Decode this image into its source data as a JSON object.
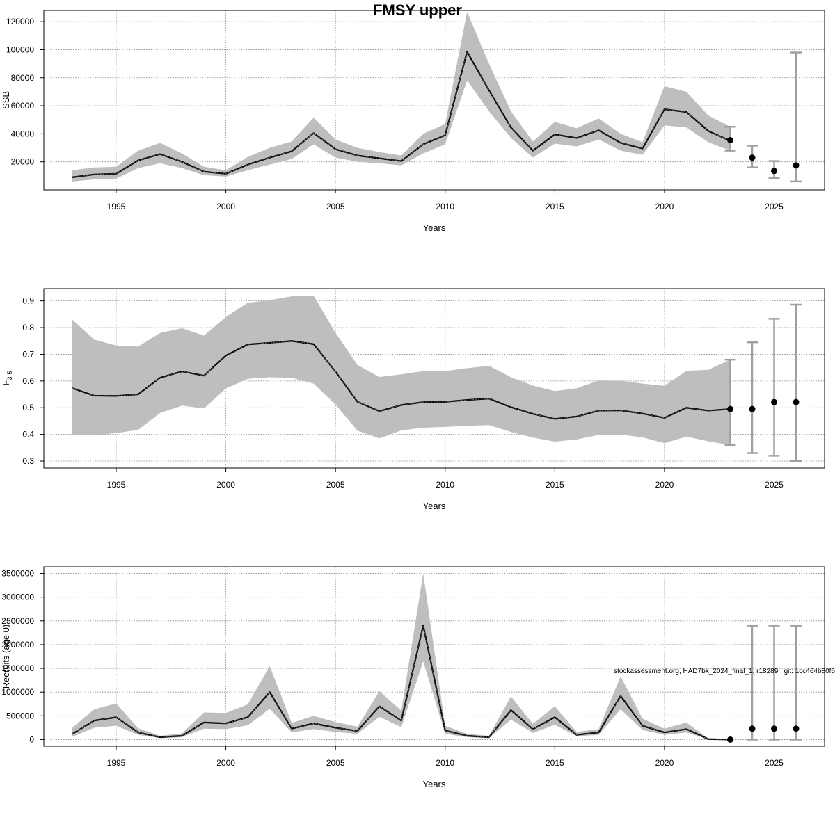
{
  "title": "FMSY upper",
  "footnote": "stockassessment.org, HAD7bk_2024_final_1, r18289 , git: 1cc464b80f6",
  "chart_data": [
    {
      "type": "line",
      "name": "ssb",
      "xlabel": "Years",
      "ylabel": "SSB",
      "ylabel_sub": "",
      "xlim": [
        1991.7,
        2027.3
      ],
      "ylim": [
        0,
        128000
      ],
      "yticks": [
        20000,
        40000,
        60000,
        80000,
        100000,
        120000
      ],
      "ytick_labels": [
        "20000",
        "40000",
        "60000",
        "80000",
        "100000",
        "120000"
      ],
      "xticks": [
        1995,
        2000,
        2005,
        2010,
        2015,
        2020,
        2025
      ],
      "grid": true,
      "series": [
        {
          "name": "estimate",
          "x": [
            1993,
            1994,
            1995,
            1996,
            1997,
            1998,
            1999,
            2000,
            2001,
            2002,
            2003,
            2004,
            2005,
            2006,
            2007,
            2008,
            2009,
            2010,
            2011,
            2012,
            2013,
            2014,
            2015,
            2016,
            2017,
            2018,
            2019,
            2020,
            2021,
            2022,
            2023
          ],
          "values": [
            9000,
            11000,
            11500,
            21000,
            25500,
            20000,
            13000,
            11500,
            18000,
            23000,
            27500,
            40500,
            29000,
            24500,
            22500,
            20500,
            32500,
            39000,
            98500,
            71000,
            44500,
            28000,
            39500,
            37000,
            42500,
            33500,
            29500,
            57500,
            55500,
            42000,
            35000
          ],
          "lower": [
            6000,
            7500,
            8000,
            15500,
            19000,
            15500,
            10500,
            9500,
            14000,
            18000,
            22000,
            32500,
            23000,
            20000,
            19000,
            17500,
            26000,
            32500,
            78000,
            56000,
            37000,
            23000,
            33000,
            31000,
            36000,
            28000,
            25000,
            46000,
            44500,
            34000,
            28000
          ],
          "upper": [
            14000,
            16000,
            16500,
            28000,
            33500,
            26000,
            16500,
            14000,
            23500,
            30000,
            34500,
            51500,
            36000,
            30000,
            27000,
            24500,
            40000,
            47000,
            127000,
            90000,
            56000,
            34500,
            48500,
            44000,
            51000,
            40000,
            34000,
            74000,
            70000,
            53000,
            45000
          ]
        }
      ],
      "forecast": {
        "x": [
          2023,
          2024,
          2025,
          2026
        ],
        "values": [
          35500,
          23000,
          13500,
          17500
        ],
        "lower": [
          28000,
          16000,
          8500,
          6000
        ],
        "upper": [
          45000,
          31500,
          20500,
          98000
        ]
      }
    },
    {
      "type": "line",
      "name": "fbar",
      "xlabel": "Years",
      "ylabel": "F",
      "ylabel_sub": "3-5",
      "xlim": [
        1991.7,
        2027.3
      ],
      "ylim": [
        0.274,
        0.946
      ],
      "yticks": [
        0.3,
        0.4,
        0.5,
        0.6,
        0.7,
        0.8,
        0.9
      ],
      "ytick_labels": [
        "0.3",
        "0.4",
        "0.5",
        "0.6",
        "0.7",
        "0.8",
        "0.9"
      ],
      "xticks": [
        1995,
        2000,
        2005,
        2010,
        2015,
        2020,
        2025
      ],
      "grid": true,
      "series": [
        {
          "name": "estimate",
          "x": [
            1993,
            1994,
            1995,
            1996,
            1997,
            1998,
            1999,
            2000,
            2001,
            2002,
            2003,
            2004,
            2005,
            2006,
            2007,
            2008,
            2009,
            2010,
            2011,
            2012,
            2013,
            2014,
            2015,
            2016,
            2017,
            2018,
            2019,
            2020,
            2021,
            2022,
            2023
          ],
          "values": [
            0.573,
            0.545,
            0.544,
            0.55,
            0.612,
            0.636,
            0.62,
            0.695,
            0.737,
            0.743,
            0.75,
            0.738,
            0.635,
            0.522,
            0.487,
            0.51,
            0.521,
            0.522,
            0.529,
            0.534,
            0.502,
            0.477,
            0.458,
            0.467,
            0.489,
            0.49,
            0.478,
            0.462,
            0.5,
            0.489,
            0.495
          ],
          "lower": [
            0.398,
            0.397,
            0.405,
            0.417,
            0.48,
            0.508,
            0.497,
            0.572,
            0.608,
            0.614,
            0.612,
            0.59,
            0.512,
            0.414,
            0.385,
            0.415,
            0.425,
            0.428,
            0.432,
            0.435,
            0.409,
            0.388,
            0.373,
            0.381,
            0.398,
            0.399,
            0.389,
            0.367,
            0.392,
            0.374,
            0.36
          ],
          "upper": [
            0.83,
            0.755,
            0.733,
            0.729,
            0.78,
            0.798,
            0.77,
            0.84,
            0.893,
            0.903,
            0.917,
            0.92,
            0.78,
            0.66,
            0.615,
            0.625,
            0.637,
            0.637,
            0.648,
            0.657,
            0.614,
            0.583,
            0.562,
            0.573,
            0.602,
            0.601,
            0.59,
            0.582,
            0.638,
            0.642,
            0.68
          ]
        }
      ],
      "forecast": {
        "x": [
          2023,
          2024,
          2025,
          2026
        ],
        "values": [
          0.495,
          0.495,
          0.521,
          0.521
        ],
        "lower": [
          0.36,
          0.33,
          0.32,
          0.3
        ],
        "upper": [
          0.68,
          0.745,
          0.833,
          0.886
        ]
      }
    },
    {
      "type": "line",
      "name": "recruits",
      "xlabel": "Years",
      "ylabel": "Recruits (age 0)",
      "ylabel_sub": "",
      "xlim": [
        1991.7,
        2027.3
      ],
      "ylim": [
        -140000,
        3640000
      ],
      "yticks": [
        0,
        500000,
        1000000,
        1500000,
        2000000,
        2500000,
        3000000,
        3500000
      ],
      "ytick_labels": [
        "0",
        "500000",
        "1000000",
        "1500000",
        "2000000",
        "2500000",
        "3000000",
        "3500000"
      ],
      "xticks": [
        1995,
        2000,
        2005,
        2010,
        2015,
        2020,
        2025
      ],
      "grid": true,
      "series": [
        {
          "name": "estimate",
          "x": [
            1993,
            1994,
            1995,
            1996,
            1997,
            1998,
            1999,
            2000,
            2001,
            2002,
            2003,
            2004,
            2005,
            2006,
            2007,
            2008,
            2009,
            2010,
            2011,
            2012,
            2013,
            2014,
            2015,
            2016,
            2017,
            2018,
            2019,
            2020,
            2021,
            2022,
            2023
          ],
          "values": [
            120000,
            400000,
            470000,
            150000,
            50000,
            80000,
            360000,
            340000,
            470000,
            1000000,
            230000,
            340000,
            250000,
            180000,
            700000,
            400000,
            2400000,
            190000,
            80000,
            50000,
            620000,
            220000,
            470000,
            100000,
            150000,
            920000,
            290000,
            150000,
            220000,
            10000,
            0
          ],
          "lower": [
            60000,
            250000,
            290000,
            100000,
            30000,
            50000,
            230000,
            220000,
            300000,
            650000,
            150000,
            220000,
            160000,
            120000,
            480000,
            260000,
            1650000,
            120000,
            50000,
            30000,
            420000,
            140000,
            310000,
            70000,
            100000,
            640000,
            200000,
            100000,
            150000,
            5000,
            0
          ],
          "upper": [
            250000,
            640000,
            760000,
            240000,
            80000,
            130000,
            570000,
            560000,
            740000,
            1550000,
            350000,
            500000,
            370000,
            270000,
            1020000,
            610000,
            3500000,
            290000,
            120000,
            80000,
            910000,
            330000,
            700000,
            160000,
            220000,
            1330000,
            440000,
            230000,
            360000,
            20000,
            0
          ]
        }
      ],
      "forecast": {
        "x": [
          2023,
          2024,
          2025,
          2026
        ],
        "values": [
          0,
          230000,
          230000,
          230000
        ],
        "lower": [
          0,
          0,
          0,
          0
        ],
        "upper": [
          0,
          2400000,
          2400000,
          2400000
        ]
      }
    }
  ]
}
